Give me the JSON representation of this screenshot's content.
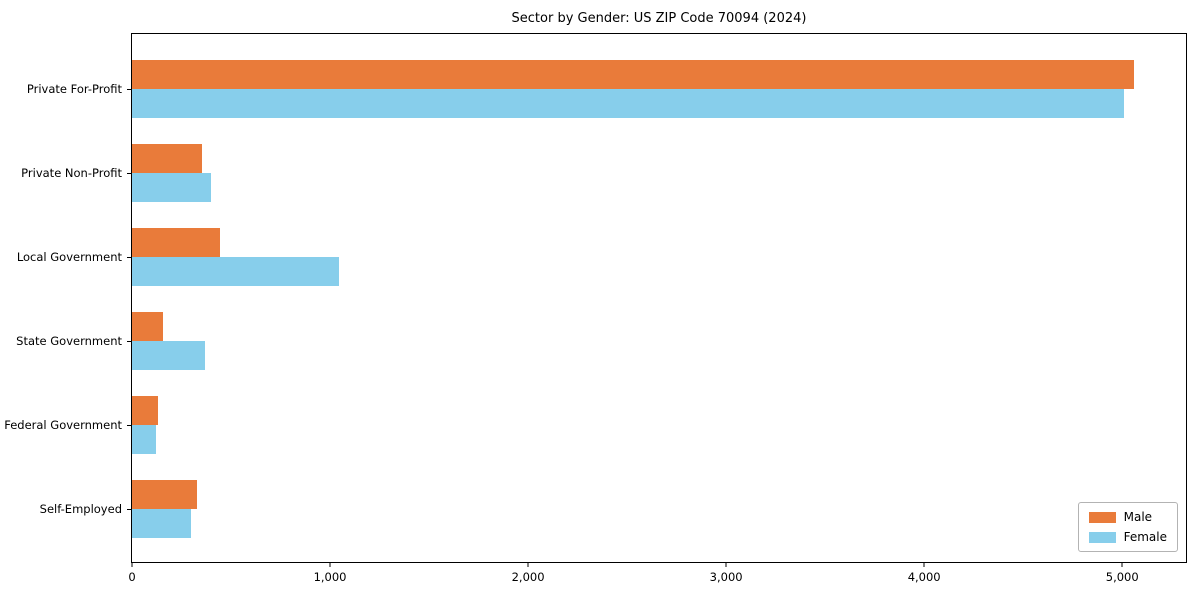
{
  "chart_data": {
    "type": "bar",
    "orientation": "horizontal",
    "title": "Sector by Gender: US ZIP Code 70094 (2024)",
    "categories": [
      "Private For-Profit",
      "Private Non-Profit",
      "Local Government",
      "State Government",
      "Federal Government",
      "Self-Employed"
    ],
    "series": [
      {
        "name": "Male",
        "color": "#E97B3A",
        "values": [
          5060,
          355,
          445,
          155,
          130,
          330
        ]
      },
      {
        "name": "Female",
        "color": "#87CEEB",
        "values": [
          5010,
          400,
          1045,
          370,
          120,
          300
        ]
      }
    ],
    "xlabel": "",
    "ylabel": "",
    "xlim": [
      0,
      5322
    ],
    "x_ticks": [
      0,
      1000,
      2000,
      3000,
      4000,
      5000
    ],
    "x_tick_labels": [
      "0",
      "1,000",
      "2,000",
      "3,000",
      "4,000",
      "5,000"
    ],
    "legend_position": "lower right",
    "grid": false,
    "colors": {
      "male": "#E97B3A",
      "female": "#87CEEB",
      "axis": "#000000",
      "legend_border": "#b3b3b3"
    }
  }
}
